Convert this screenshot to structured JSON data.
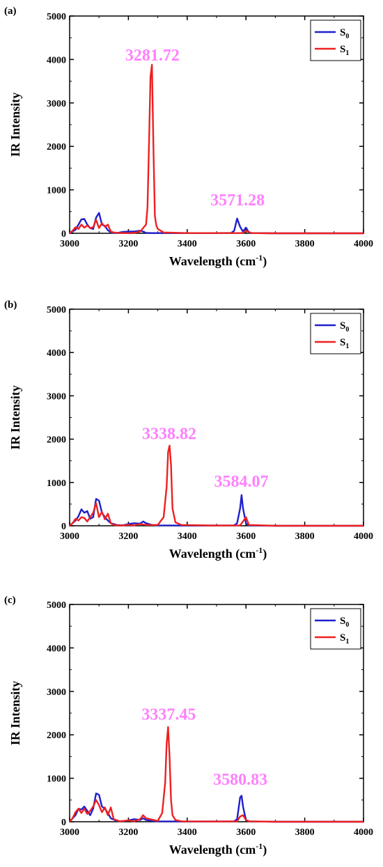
{
  "chart_data": [
    {
      "type": "line",
      "panel_label": "(a)",
      "xlabel": "Wavelength (cm",
      "xlabel_sup": "-1",
      "xlabel_tail": ")",
      "ylabel": "IR Intensity",
      "xlim": [
        3000,
        4000
      ],
      "ylim": [
        0,
        5000
      ],
      "xticks": [
        "3000",
        "3200",
        "3400",
        "3600",
        "3800",
        "4000"
      ],
      "yticks": [
        "0",
        "1000",
        "2000",
        "3000",
        "4000",
        "5000"
      ],
      "legend_position": "top-right",
      "series": [
        {
          "name": "S",
          "sub": "0",
          "color": "#1f1fcc",
          "x": [
            3000,
            3020,
            3030,
            3040,
            3050,
            3060,
            3070,
            3080,
            3090,
            3100,
            3110,
            3120,
            3130,
            3140,
            3160,
            3180,
            3200,
            3220,
            3240,
            3250,
            3260,
            3280,
            3300,
            3400,
            3500,
            3550,
            3560,
            3570,
            3580,
            3590,
            3600,
            3610,
            3620,
            3700,
            4000
          ],
          "y": [
            0,
            80,
            200,
            320,
            330,
            200,
            120,
            100,
            360,
            470,
            200,
            170,
            70,
            20,
            5,
            30,
            40,
            40,
            60,
            40,
            10,
            5,
            5,
            5,
            5,
            10,
            60,
            340,
            150,
            40,
            130,
            20,
            5,
            0,
            0
          ]
        },
        {
          "name": "S",
          "sub": "1",
          "color": "#ee2020",
          "x": [
            3000,
            3010,
            3020,
            3030,
            3040,
            3050,
            3060,
            3070,
            3080,
            3090,
            3100,
            3110,
            3120,
            3130,
            3140,
            3150,
            3170,
            3190,
            3200,
            3220,
            3240,
            3260,
            3265,
            3270,
            3275,
            3280,
            3285,
            3290,
            3295,
            3300,
            3320,
            3400,
            3500,
            3580,
            3590,
            3600,
            3610,
            3620,
            3700,
            4000
          ],
          "y": [
            0,
            60,
            140,
            100,
            200,
            130,
            180,
            120,
            140,
            310,
            120,
            230,
            150,
            200,
            40,
            20,
            5,
            10,
            5,
            10,
            40,
            200,
            600,
            2000,
            3600,
            3880,
            2000,
            400,
            180,
            100,
            20,
            5,
            5,
            5,
            10,
            60,
            30,
            5,
            0,
            0
          ]
        }
      ],
      "annotations": [
        "3281.72",
        "3571.28"
      ]
    },
    {
      "type": "line",
      "panel_label": "(b)",
      "xlabel": "Wavelength (cm",
      "xlabel_sup": "-1",
      "xlabel_tail": ")",
      "ylabel": "IR Intensity",
      "xlim": [
        3000,
        4000
      ],
      "ylim": [
        0,
        5000
      ],
      "xticks": [
        "3000",
        "3200",
        "3400",
        "3600",
        "3800",
        "4000"
      ],
      "yticks": [
        "0",
        "1000",
        "2000",
        "3000",
        "4000",
        "5000"
      ],
      "legend_position": "top-right",
      "series": [
        {
          "name": "S",
          "sub": "0",
          "color": "#1f1fcc",
          "x": [
            3000,
            3020,
            3030,
            3040,
            3050,
            3060,
            3070,
            3080,
            3090,
            3100,
            3110,
            3120,
            3130,
            3140,
            3160,
            3180,
            3200,
            3220,
            3240,
            3250,
            3260,
            3280,
            3300,
            3400,
            3560,
            3570,
            3580,
            3585,
            3590,
            3600,
            3610,
            3700,
            4000
          ],
          "y": [
            0,
            120,
            220,
            380,
            300,
            340,
            160,
            200,
            620,
            580,
            300,
            200,
            120,
            60,
            20,
            10,
            40,
            60,
            50,
            100,
            60,
            20,
            10,
            5,
            10,
            60,
            400,
            710,
            400,
            60,
            10,
            0,
            0
          ]
        },
        {
          "name": "S",
          "sub": "1",
          "color": "#ee2020",
          "x": [
            3000,
            3010,
            3020,
            3030,
            3040,
            3050,
            3060,
            3070,
            3080,
            3090,
            3100,
            3110,
            3120,
            3130,
            3140,
            3150,
            3170,
            3200,
            3220,
            3240,
            3260,
            3300,
            3320,
            3330,
            3335,
            3340,
            3345,
            3350,
            3360,
            3380,
            3500,
            3580,
            3590,
            3600,
            3610,
            3700,
            4000
          ],
          "y": [
            0,
            60,
            160,
            120,
            200,
            180,
            100,
            200,
            300,
            520,
            200,
            320,
            150,
            280,
            60,
            20,
            5,
            20,
            10,
            40,
            20,
            20,
            200,
            900,
            1700,
            1850,
            1400,
            400,
            80,
            20,
            5,
            10,
            100,
            200,
            20,
            0,
            0
          ]
        }
      ],
      "annotations": [
        "3338.82",
        "3584.07"
      ]
    },
    {
      "type": "line",
      "panel_label": "(c)",
      "xlabel": "Wavelength (cm",
      "xlabel_sup": "-1",
      "xlabel_tail": ")",
      "ylabel": "IR Intensity",
      "xlim": [
        3000,
        4000
      ],
      "ylim": [
        0,
        5000
      ],
      "xticks": [
        "3000",
        "3200",
        "3400",
        "3600",
        "3800",
        "4000"
      ],
      "yticks": [
        "0",
        "1000",
        "2000",
        "3000",
        "4000",
        "5000"
      ],
      "legend_position": "top-right",
      "series": [
        {
          "name": "S",
          "sub": "0",
          "color": "#1f1fcc",
          "x": [
            3000,
            3020,
            3030,
            3040,
            3050,
            3060,
            3070,
            3080,
            3090,
            3100,
            3110,
            3120,
            3130,
            3140,
            3160,
            3180,
            3200,
            3220,
            3240,
            3250,
            3260,
            3280,
            3300,
            3400,
            3560,
            3570,
            3575,
            3580,
            3585,
            3590,
            3600,
            3610,
            3700,
            4000
          ],
          "y": [
            0,
            150,
            300,
            280,
            350,
            250,
            150,
            300,
            650,
            620,
            350,
            300,
            200,
            80,
            20,
            10,
            30,
            60,
            40,
            80,
            40,
            20,
            10,
            5,
            10,
            60,
            300,
            560,
            600,
            350,
            40,
            10,
            0,
            0
          ]
        },
        {
          "name": "S",
          "sub": "1",
          "color": "#ee2020",
          "x": [
            3000,
            3010,
            3020,
            3030,
            3040,
            3050,
            3060,
            3070,
            3080,
            3090,
            3100,
            3110,
            3120,
            3130,
            3140,
            3150,
            3170,
            3200,
            3220,
            3240,
            3250,
            3260,
            3300,
            3315,
            3325,
            3330,
            3335,
            3340,
            3345,
            3350,
            3360,
            3380,
            3500,
            3570,
            3580,
            3590,
            3600,
            3610,
            3700,
            4000
          ],
          "y": [
            0,
            80,
            220,
            300,
            200,
            300,
            180,
            250,
            350,
            500,
            380,
            220,
            330,
            150,
            330,
            60,
            10,
            30,
            10,
            60,
            150,
            80,
            20,
            200,
            900,
            1800,
            2180,
            1500,
            500,
            150,
            40,
            10,
            5,
            10,
            120,
            150,
            40,
            10,
            0,
            0
          ]
        }
      ],
      "annotations": [
        "3337.45",
        "3580.83"
      ]
    }
  ]
}
